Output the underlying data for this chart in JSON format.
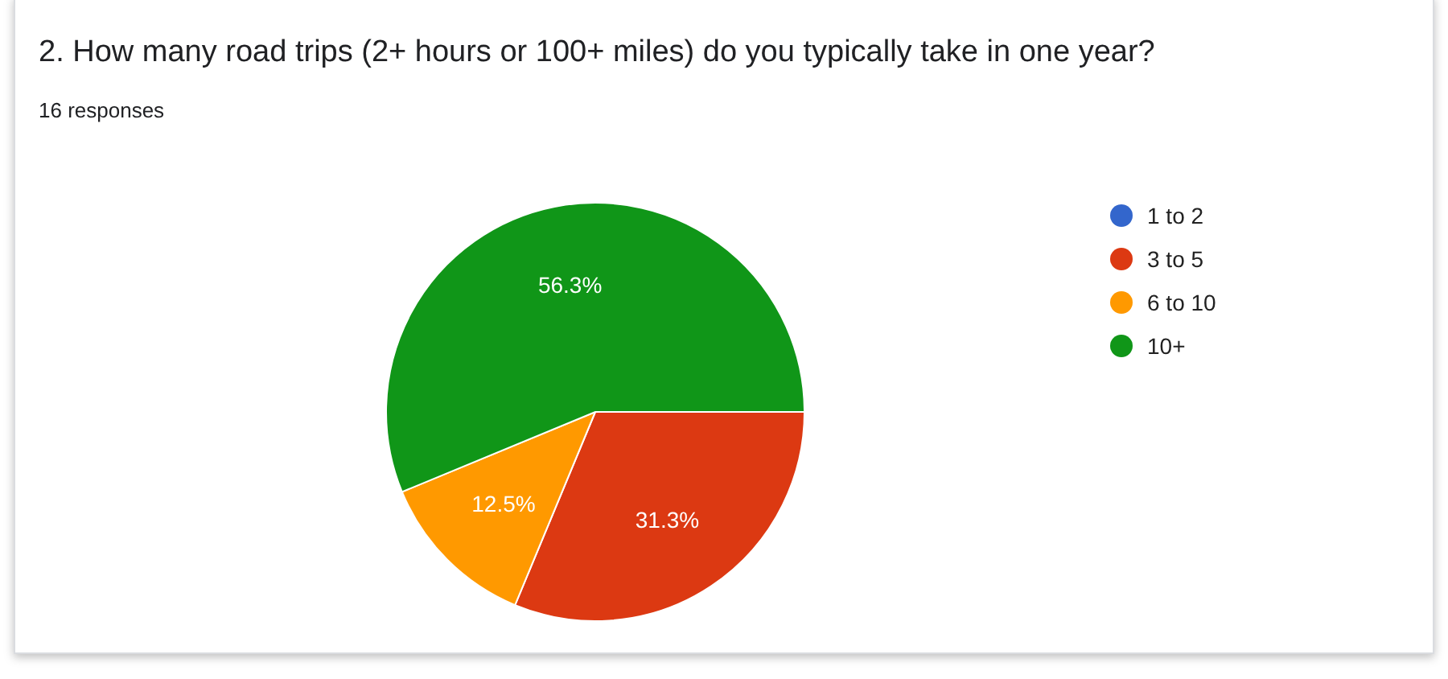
{
  "chart_data": {
    "type": "pie",
    "title": "2. How many road trips (2+ hours or 100+ miles) do you typically take in one year?",
    "subtitle": "16 responses",
    "categories": [
      "1 to 2",
      "3 to 5",
      "6 to 10",
      "10+"
    ],
    "values": [
      0,
      31.3,
      12.5,
      56.3
    ],
    "colors": [
      "#3366cc",
      "#dc3912",
      "#ff9900",
      "#109618"
    ],
    "value_labels": [
      null,
      "31.3%",
      "12.5%",
      "56.3%"
    ],
    "legend": "right"
  }
}
